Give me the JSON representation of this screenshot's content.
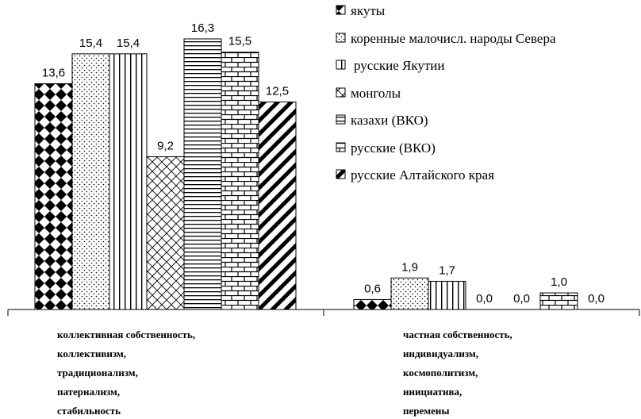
{
  "chart_data": {
    "type": "bar",
    "categories": [
      [
        "коллективная собственность,",
        "коллективизм,",
        "традиционализм,",
        "патернализм,",
        "стабильность"
      ],
      [
        "частная собственность,",
        "индивидуализм,",
        "космополитизм,",
        "инициатива,",
        "перемены"
      ]
    ],
    "series": [
      {
        "name": "якуты",
        "values": [
          13.6,
          0.6
        ],
        "labels": [
          "13,6",
          "0,6"
        ],
        "pattern": "diamond-grid"
      },
      {
        "name": "коренные малочисл. народы Севера",
        "values": [
          15.4,
          1.9
        ],
        "labels": [
          "15,4",
          "1,9"
        ],
        "pattern": "dots"
      },
      {
        "name": "русские Якутии",
        "values": [
          15.4,
          1.7
        ],
        "labels": [
          "15,4",
          "1,7"
        ],
        "pattern": "vertical-lines"
      },
      {
        "name": "монголы",
        "values": [
          9.2,
          0.0
        ],
        "labels": [
          "9,2",
          "0,0"
        ],
        "pattern": "lattice"
      },
      {
        "name": "казахи (ВКО)",
        "values": [
          16.3,
          0.0
        ],
        "labels": [
          "16,3",
          "0,0"
        ],
        "pattern": "horizontal-lines"
      },
      {
        "name": "русские (ВКО)",
        "values": [
          15.5,
          1.0
        ],
        "labels": [
          "15,5",
          "1,0"
        ],
        "pattern": "bricks"
      },
      {
        "name": "русские Алтайского края",
        "values": [
          12.5,
          0.0
        ],
        "labels": [
          "12,5",
          "0,0"
        ],
        "pattern": "wide-diagonal"
      }
    ],
    "ylim": [
      0,
      17
    ],
    "grid": false,
    "legend_position": "top-right"
  }
}
